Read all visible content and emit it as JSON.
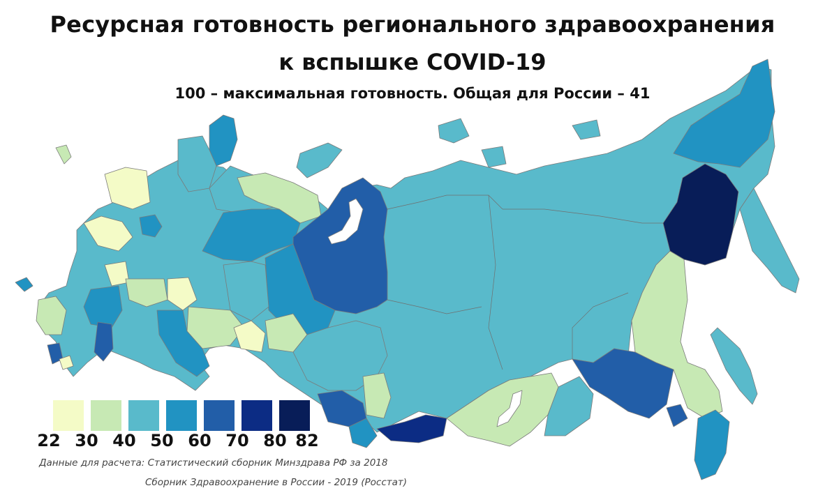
{
  "title_line1": "Ресурсная готовность регионального здравоохранения",
  "title_line2": "к вспышке COVID-19",
  "subtitle": "100 – максимальная готовность. Общая для России – 41",
  "legend": {
    "colors": [
      "#f4fbc7",
      "#c7e9b4",
      "#59bacb",
      "#2193c2",
      "#225ea8",
      "#0c2c84",
      "#081d58"
    ],
    "ticks": [
      "22",
      "30",
      "40",
      "50",
      "60",
      "70",
      "80",
      "82"
    ]
  },
  "colors": {
    "c20": "#f4fbc7",
    "c30": "#c7e9b4",
    "c40": "#59bacb",
    "c50": "#2193c2",
    "c60": "#225ea8",
    "c70": "#0c2c84",
    "c80": "#081d58"
  },
  "source_line1": "Данные для расчета: Статистический сборник Минздрава РФ за 2018",
  "source_line2": "Сборник Здравоохранение в России - 2019 (Росстат)"
}
